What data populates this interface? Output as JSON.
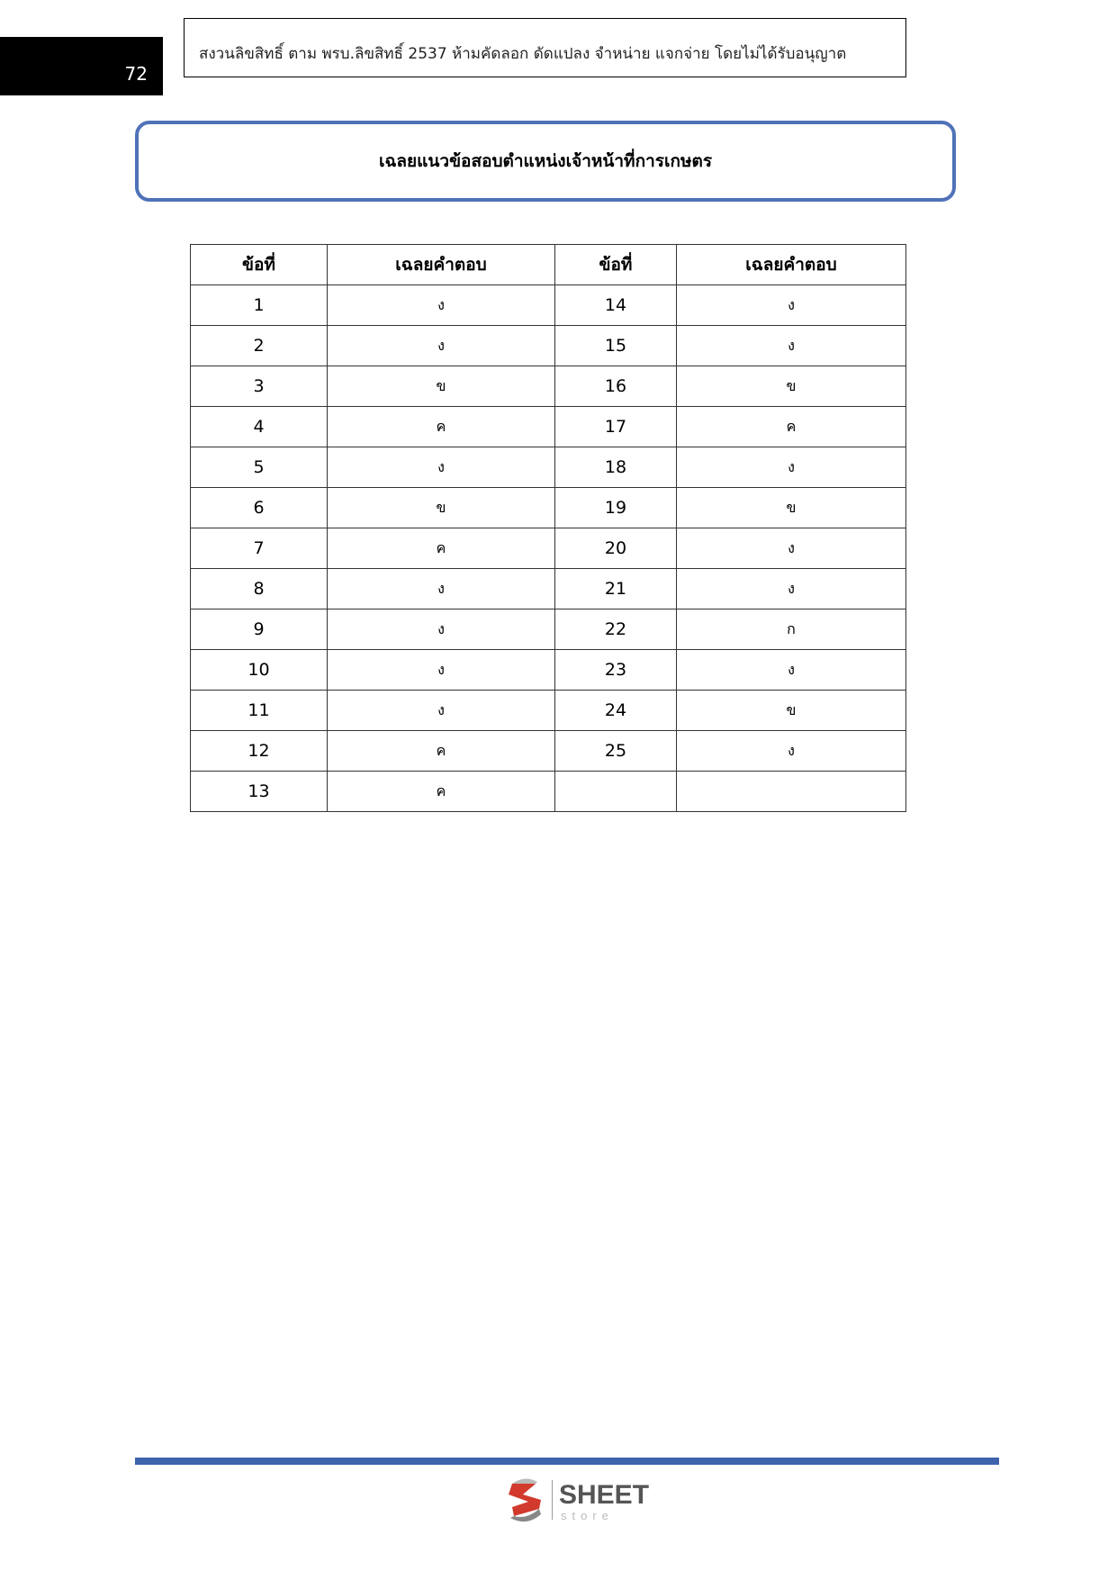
{
  "page_number": "72",
  "copyright": "สงวนลิขสิทธิ์ ตาม พรบ.ลิขสิทธิ์ 2537 ห้ามคัดลอก ดัดแปลง จำหน่าย แจกจ่าย โดยไม่ได้รับอนุญาต",
  "title": "เฉลยแนวข้อสอบตำแหน่งเจ้าหน้าที่การเกษตร",
  "table": {
    "headers": [
      "ข้อที่",
      "เฉลยคำตอบ",
      "ข้อที่",
      "เฉลยคำตอบ"
    ],
    "rows": [
      [
        "1",
        "ง",
        "14",
        "ง"
      ],
      [
        "2",
        "ง",
        "15",
        "ง"
      ],
      [
        "3",
        "ข",
        "16",
        "ข"
      ],
      [
        "4",
        "ค",
        "17",
        "ค"
      ],
      [
        "5",
        "ง",
        "18",
        "ง"
      ],
      [
        "6",
        "ข",
        "19",
        "ข"
      ],
      [
        "7",
        "ค",
        "20",
        "ง"
      ],
      [
        "8",
        "ง",
        "21",
        "ง"
      ],
      [
        "9",
        "ง",
        "22",
        "ก"
      ],
      [
        "10",
        "ง",
        "23",
        "ง"
      ],
      [
        "11",
        "ง",
        "24",
        "ข"
      ],
      [
        "12",
        "ค",
        "25",
        "ง"
      ],
      [
        "13",
        "ค",
        "",
        ""
      ]
    ]
  },
  "logo": {
    "brand": "SHEET",
    "sub": "store"
  },
  "colors": {
    "accent": "#4f72b8",
    "footer_line": "#3f62ad",
    "logo_red": "#d23a2e"
  }
}
